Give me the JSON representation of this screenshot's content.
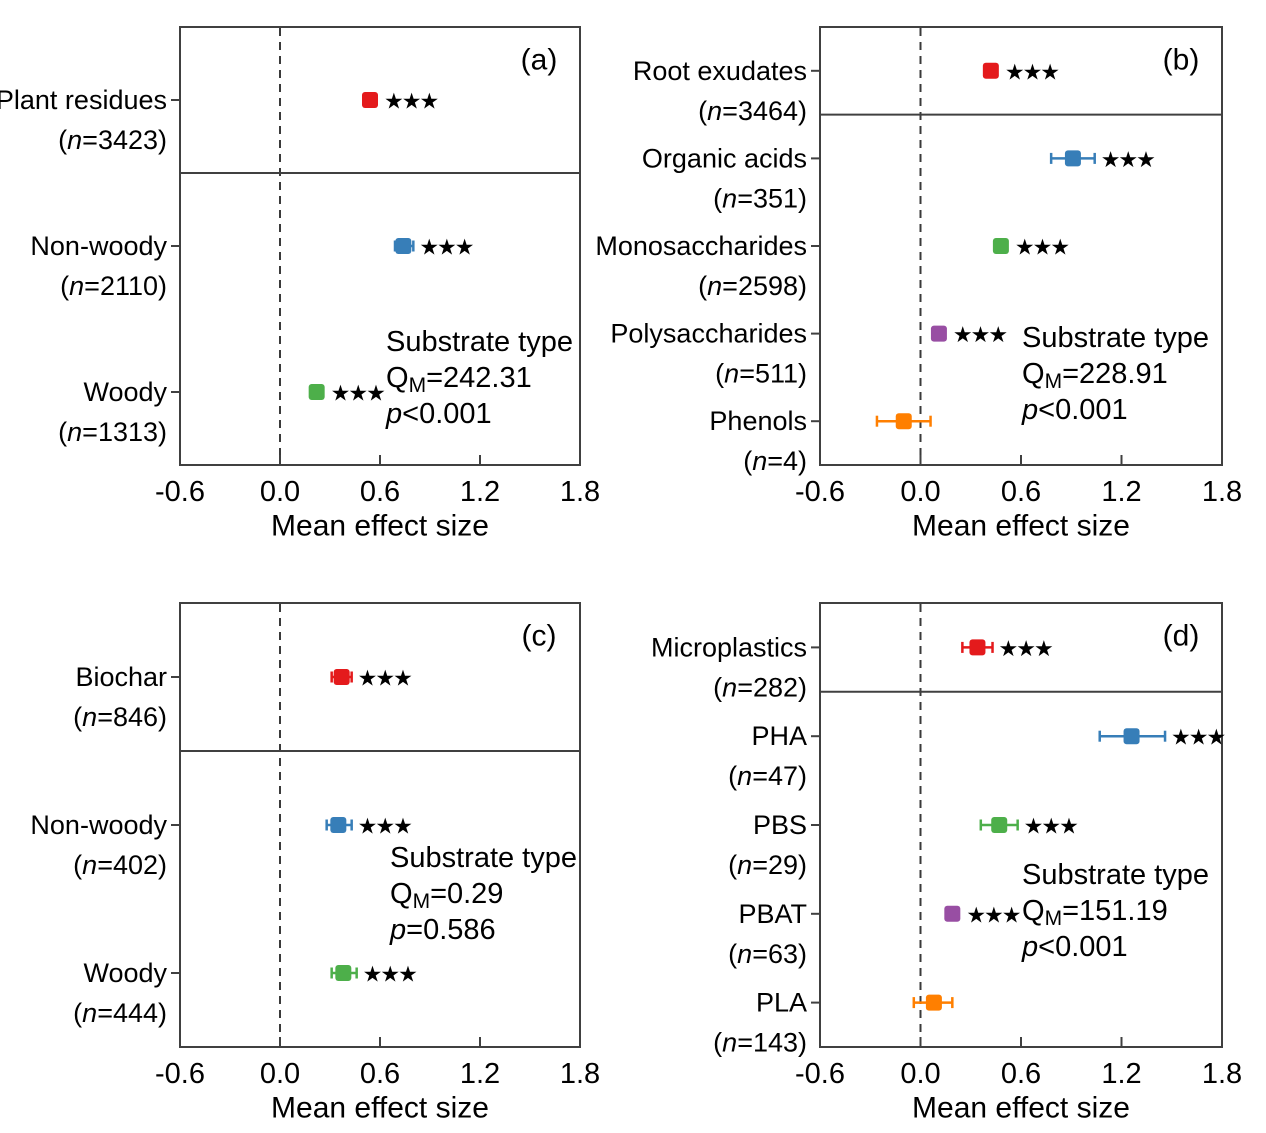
{
  "figure": {
    "xlabel": "Mean effect size",
    "xlim": [
      -0.6,
      1.8
    ],
    "x_tick_values": [
      -0.6,
      0.0,
      0.6,
      1.2,
      1.8
    ],
    "x_tick_labels": [
      "-0.6",
      "0.0",
      "0.6",
      "1.2",
      "1.8"
    ],
    "inner_tick_values": [
      0.0,
      0.6,
      1.2
    ],
    "significance_label": "★★★",
    "frame_color": "#404040",
    "zero_line_color": "#3a3a3a",
    "text_color": "#000000",
    "palette": {
      "red": "#e41a1c",
      "blue": "#377eb8",
      "green": "#4daf4a",
      "purple": "#984ea3",
      "orange": "#ff7f00"
    }
  },
  "chart_data": [
    {
      "id": "a",
      "type": "scatter",
      "panel_label": "(a)",
      "divider_after_first_row": true,
      "stats": {
        "heading": "Substrate type",
        "q_base": "Q",
        "q_sub": "M",
        "q_rest": "=242.31",
        "p_base": "p",
        "p_rest": "<0.001"
      },
      "rows": [
        {
          "label": "Plant residues",
          "n": "3423",
          "value": 0.54,
          "ci": [
            0.51,
            0.57
          ],
          "color": "red",
          "significant": true
        },
        {
          "label": "Non-woody",
          "n": "2110",
          "value": 0.74,
          "ci": [
            0.69,
            0.8
          ],
          "color": "blue",
          "significant": true
        },
        {
          "label": "Woody",
          "n": "1313",
          "value": 0.22,
          "ci": [
            0.19,
            0.25
          ],
          "color": "green",
          "significant": true
        }
      ]
    },
    {
      "id": "b",
      "type": "scatter",
      "panel_label": "(b)",
      "divider_after_first_row": true,
      "stats": {
        "heading": "Substrate type",
        "q_base": "Q",
        "q_sub": "M",
        "q_rest": "=228.91",
        "p_base": "p",
        "p_rest": "<0.001"
      },
      "rows": [
        {
          "label": "Root exudates",
          "n": "3464",
          "value": 0.42,
          "ci": [
            0.4,
            0.44
          ],
          "color": "red",
          "significant": true
        },
        {
          "label": "Organic acids",
          "n": "351",
          "value": 0.91,
          "ci": [
            0.78,
            1.04
          ],
          "color": "blue",
          "significant": true
        },
        {
          "label": "Monosaccharides",
          "n": "2598",
          "value": 0.48,
          "ci": [
            0.46,
            0.5
          ],
          "color": "green",
          "significant": true
        },
        {
          "label": "Polysaccharides",
          "n": "511",
          "value": 0.11,
          "ci": [
            0.08,
            0.14
          ],
          "color": "purple",
          "significant": true
        },
        {
          "label": "Phenols",
          "n": "4",
          "value": -0.1,
          "ci": [
            -0.26,
            0.06
          ],
          "color": "orange",
          "significant": false
        }
      ]
    },
    {
      "id": "c",
      "type": "scatter",
      "panel_label": "(c)",
      "divider_after_first_row": true,
      "stats": {
        "heading": "Substrate type",
        "q_base": "Q",
        "q_sub": "M",
        "q_rest": "=0.29",
        "p_base": "p",
        "p_rest": "=0.586"
      },
      "rows": [
        {
          "label": "Biochar",
          "n": "846",
          "value": 0.37,
          "ci": [
            0.31,
            0.43
          ],
          "color": "red",
          "significant": true
        },
        {
          "label": "Non-woody",
          "n": "402",
          "value": 0.35,
          "ci": [
            0.28,
            0.43
          ],
          "color": "blue",
          "significant": true
        },
        {
          "label": "Woody",
          "n": "444",
          "value": 0.38,
          "ci": [
            0.31,
            0.46
          ],
          "color": "green",
          "significant": true
        }
      ]
    },
    {
      "id": "d",
      "type": "scatter",
      "panel_label": "(d)",
      "divider_after_first_row": true,
      "stats": {
        "heading": "Substrate type",
        "q_base": "Q",
        "q_sub": "M",
        "q_rest": "=151.19",
        "p_base": "p",
        "p_rest": "<0.001"
      },
      "rows": [
        {
          "label": "Microplastics",
          "n": "282",
          "value": 0.34,
          "ci": [
            0.25,
            0.43
          ],
          "color": "red",
          "significant": true
        },
        {
          "label": "PHA",
          "n": "47",
          "value": 1.26,
          "ci": [
            1.07,
            1.46
          ],
          "color": "blue",
          "significant": true
        },
        {
          "label": "PBS",
          "n": "29",
          "value": 0.47,
          "ci": [
            0.36,
            0.58
          ],
          "color": "green",
          "significant": true
        },
        {
          "label": "PBAT",
          "n": "63",
          "value": 0.19,
          "ci": [
            0.16,
            0.22
          ],
          "color": "purple",
          "significant": true
        },
        {
          "label": "PLA",
          "n": "143",
          "value": 0.08,
          "ci": [
            -0.04,
            0.19
          ],
          "color": "orange",
          "significant": false
        }
      ]
    }
  ]
}
